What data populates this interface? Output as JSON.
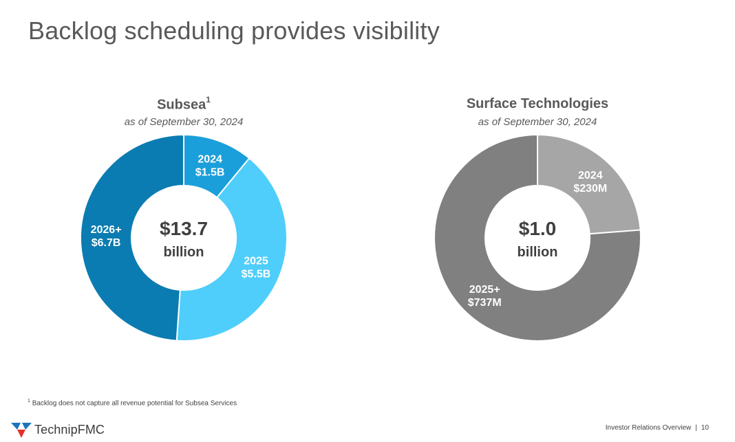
{
  "slide": {
    "title": "Backlog scheduling provides visibility"
  },
  "chart_data": [
    {
      "type": "pie",
      "title": "Subsea",
      "title_footnote_marker": "1",
      "subtitle": "as of September 30, 2024",
      "center_value": "$13.7",
      "center_unit": "billion",
      "unit": "$B",
      "slices": [
        {
          "period": "2024",
          "value_label": "$1.5B",
          "value": 1.5,
          "color": "#1B9FDA"
        },
        {
          "period": "2025",
          "value_label": "$5.5B",
          "value": 5.5,
          "color": "#4FCEFB"
        },
        {
          "period": "2026+",
          "value_label": "$6.7B",
          "value": 6.7,
          "color": "#0B7CB1"
        }
      ]
    },
    {
      "type": "pie",
      "title": "Surface Technologies",
      "subtitle": "as of September 30, 2024",
      "center_value": "$1.0",
      "center_unit": "billion",
      "unit": "$M",
      "slices": [
        {
          "period": "2024",
          "value_label": "$230M",
          "value": 230,
          "color": "#A6A6A6"
        },
        {
          "period": "2025+",
          "value_label": "$737M",
          "value": 737,
          "color": "#808080"
        }
      ]
    }
  ],
  "footnote": {
    "marker": "1",
    "text": "Backlog does not capture all revenue potential for Subsea Services"
  },
  "footer": {
    "logo_text": "TechnipFMC",
    "section": "Investor Relations Overview",
    "separator": "|",
    "page_number": "10"
  },
  "colors": {
    "title_text": "#595959",
    "center_text": "#404040",
    "logo_blue": "#1B75BB",
    "logo_red": "#E5312D"
  }
}
